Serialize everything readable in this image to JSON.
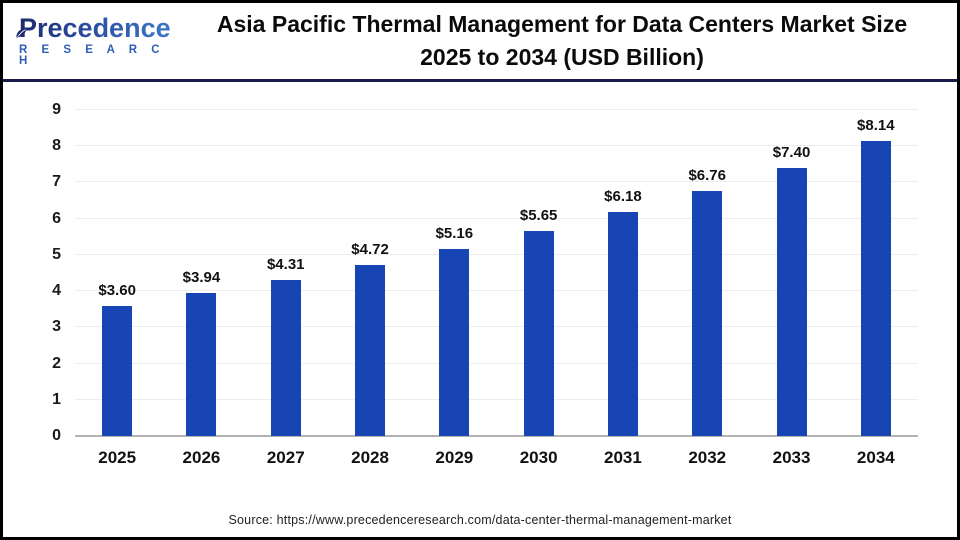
{
  "header": {
    "logo_line1": "Precedence",
    "logo_line2": "R E S E A R C H",
    "title_line1": "Asia Pacific Thermal Management for Data Centers Market Size",
    "title_line2": "2025 to 2034 (USD Billion)"
  },
  "chart_data": {
    "type": "bar",
    "title": "Asia Pacific Thermal Management for Data Centers Market Size 2025 to 2034 (USD Billion)",
    "categories": [
      "2025",
      "2026",
      "2027",
      "2028",
      "2029",
      "2030",
      "2031",
      "2032",
      "2033",
      "2034"
    ],
    "values": [
      3.6,
      3.94,
      4.31,
      4.72,
      5.16,
      5.65,
      6.18,
      6.76,
      7.4,
      8.14
    ],
    "value_labels": [
      "$3.60",
      "$3.94",
      "$4.31",
      "$4.72",
      "$5.16",
      "$5.65",
      "$6.18",
      "$6.76",
      "$7.40",
      "$8.14"
    ],
    "xlabel": "",
    "ylabel": "",
    "ylim": [
      0,
      9
    ],
    "yticks": [
      0,
      1,
      2,
      3,
      4,
      5,
      6,
      7,
      8,
      9
    ],
    "grid": true,
    "legend": "none",
    "bar_color": "#1745b3",
    "gridline_color": "#ededed",
    "baseline_color": "#b3b3b3"
  },
  "theme": {
    "outer_border_color": "#000000",
    "header_divider_color": "#1a1b4d",
    "logo_gradient_start": "#1d2a6d",
    "logo_gradient_end": "#3d7ecb",
    "logo_sub_color": "#2e5fb5"
  },
  "footer": {
    "source": "Source: https://www.precedenceresearch.com/data-center-thermal-management-market"
  }
}
